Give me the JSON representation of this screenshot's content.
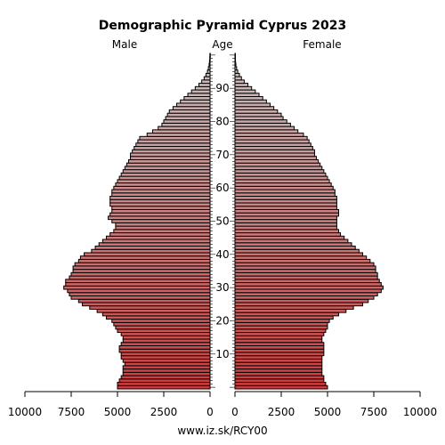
{
  "chart_data": {
    "type": "bar",
    "orientation": "horizontal",
    "title": "Demographic Pyramid Cyprus 2023",
    "left_label": "Male",
    "center_label": "Age",
    "right_label": "Female",
    "footer": "www.iz.sk/RCY00",
    "male_ticks": [
      "10000",
      "7500",
      "5000",
      "2500",
      "0"
    ],
    "female_ticks": [
      "0",
      "2500",
      "5000",
      "7500",
      "10000"
    ],
    "age_labels": [
      10,
      20,
      30,
      40,
      50,
      60,
      70,
      80,
      90
    ],
    "xlim": [
      0,
      10000
    ],
    "ages": [
      0,
      1,
      2,
      3,
      4,
      5,
      6,
      7,
      8,
      9,
      10,
      11,
      12,
      13,
      14,
      15,
      16,
      17,
      18,
      19,
      20,
      21,
      22,
      23,
      24,
      25,
      26,
      27,
      28,
      29,
      30,
      31,
      32,
      33,
      34,
      35,
      36,
      37,
      38,
      39,
      40,
      41,
      42,
      43,
      44,
      45,
      46,
      47,
      48,
      49,
      50,
      51,
      52,
      53,
      54,
      55,
      56,
      57,
      58,
      59,
      60,
      61,
      62,
      63,
      64,
      65,
      66,
      67,
      68,
      69,
      70,
      71,
      72,
      73,
      74,
      75,
      76,
      77,
      78,
      79,
      80,
      81,
      82,
      83,
      84,
      85,
      86,
      87,
      88,
      89,
      90,
      91,
      92,
      93,
      94,
      95,
      96,
      97,
      98,
      99,
      100
    ],
    "series": [
      {
        "name": "Male",
        "values": [
          5000,
          5000,
          4900,
          4800,
          4700,
          4700,
          4700,
          4600,
          4700,
          4800,
          4800,
          4900,
          4900,
          4800,
          4700,
          4700,
          4800,
          5000,
          5100,
          5200,
          5300,
          5600,
          5800,
          6100,
          6500,
          6900,
          7100,
          7500,
          7600,
          7700,
          7900,
          7800,
          7800,
          7600,
          7500,
          7400,
          7400,
          7300,
          7100,
          7000,
          6800,
          6400,
          6200,
          6000,
          5800,
          5600,
          5400,
          5200,
          5100,
          5100,
          5300,
          5500,
          5400,
          5300,
          5300,
          5400,
          5400,
          5400,
          5300,
          5300,
          5200,
          5100,
          5000,
          4900,
          4800,
          4700,
          4600,
          4500,
          4400,
          4300,
          4300,
          4200,
          4100,
          4000,
          3900,
          3800,
          3400,
          3100,
          2800,
          2600,
          2500,
          2400,
          2300,
          2200,
          2000,
          1800,
          1600,
          1400,
          1200,
          1000,
          800,
          600,
          450,
          320,
          220,
          140,
          90,
          50,
          30,
          15,
          8
        ]
      },
      {
        "name": "Female",
        "values": [
          5000,
          4900,
          4800,
          4800,
          4700,
          4700,
          4700,
          4700,
          4700,
          4700,
          4800,
          4800,
          4800,
          4800,
          4700,
          4700,
          4800,
          4900,
          5000,
          5000,
          5100,
          5300,
          5600,
          6000,
          6400,
          6900,
          7200,
          7500,
          7700,
          7900,
          8000,
          7900,
          7800,
          7700,
          7700,
          7600,
          7600,
          7500,
          7300,
          7100,
          6900,
          6700,
          6500,
          6300,
          6100,
          5900,
          5700,
          5600,
          5500,
          5500,
          5500,
          5500,
          5600,
          5600,
          5500,
          5500,
          5500,
          5500,
          5400,
          5400,
          5300,
          5200,
          5100,
          5000,
          4900,
          4800,
          4700,
          4600,
          4500,
          4400,
          4300,
          4300,
          4200,
          4100,
          4000,
          3900,
          3700,
          3400,
          3200,
          3000,
          2800,
          2600,
          2500,
          2300,
          2100,
          1900,
          1700,
          1500,
          1300,
          1100,
          900,
          700,
          500,
          350,
          240,
          150,
          90,
          50,
          30,
          15,
          8
        ]
      }
    ]
  }
}
